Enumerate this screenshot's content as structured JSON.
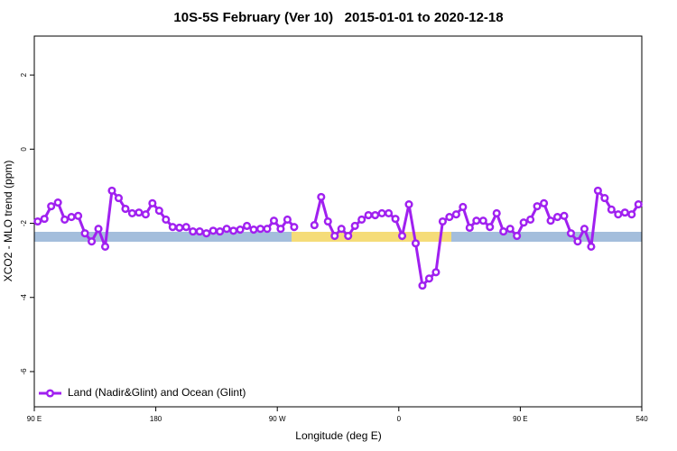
{
  "chart_data": {
    "type": "line",
    "title": "10S-5S February (Ver 10)   2015-01-01 to 2020-12-18",
    "xlabel": "Longitude (deg E)",
    "ylabel": "XCO2 - MLO trend (ppm)",
    "xlim": [
      90,
      540
    ],
    "xticks": [
      {
        "value": 90,
        "label": "90 E"
      },
      180,
      {
        "value": 270,
        "label": "90 W"
      },
      {
        "value": 360,
        "label": "0"
      },
      {
        "value": 450,
        "label": "90 E"
      },
      540
    ],
    "ylim": [
      -6.95,
      3.05
    ],
    "yticks": [
      2,
      0,
      -2,
      -4,
      -6
    ],
    "legend": "bottom-left",
    "x": [
      92.5,
      97.5,
      102.5,
      107.5,
      112.5,
      117.5,
      122.5,
      127.5,
      132.5,
      137.5,
      142.5,
      147.5,
      152.5,
      157.5,
      162.5,
      167.5,
      172.5,
      177.5,
      182.5,
      187.5,
      192.5,
      197.5,
      202.5,
      207.5,
      212.5,
      217.5,
      222.5,
      227.5,
      232.5,
      237.5,
      242.5,
      247.5,
      252.5,
      257.5,
      262.5,
      267.5,
      272.5,
      277.5,
      282.5,
      287.5,
      292.5,
      297.5,
      302.5,
      307.5,
      312.5,
      317.5,
      322.5,
      327.5,
      332.5,
      337.5,
      342.5,
      347.5,
      352.5,
      357.5,
      362.5,
      367.5,
      372.5,
      377.5,
      382.5,
      387.5,
      392.5,
      397.5,
      402.5,
      407.5,
      412.5,
      417.5,
      422.5,
      427.5,
      432.5,
      437.5,
      442.5,
      447.5,
      452.5,
      457.5,
      462.5,
      467.5,
      472.5,
      477.5,
      482.5,
      487.5,
      492.5,
      497.5,
      502.5,
      507.5,
      512.5,
      517.5,
      522.5,
      527.5,
      532.5,
      537.5
    ],
    "series": [
      {
        "name": "Land (Nadir&Glint) and Ocean (Glint)",
        "color": "#a020f0",
        "values": [
          -1.95,
          -1.88,
          -1.54,
          -1.44,
          -1.9,
          -1.83,
          -1.8,
          -2.27,
          -2.49,
          -2.15,
          -2.63,
          -1.12,
          -1.32,
          -1.61,
          -1.73,
          -1.71,
          -1.76,
          -1.46,
          -1.66,
          -1.9,
          -2.1,
          -2.12,
          -2.1,
          -2.22,
          -2.22,
          -2.27,
          -2.2,
          -2.22,
          -2.15,
          -2.2,
          -2.17,
          -2.07,
          -2.17,
          -2.15,
          -2.15,
          -1.93,
          -2.15,
          -1.9,
          -2.1,
          null,
          null,
          -2.05,
          -1.29,
          -1.95,
          -2.34,
          -2.15,
          -2.34,
          -2.07,
          -1.9,
          -1.78,
          -1.78,
          -1.73,
          -1.73,
          -1.88,
          -2.34,
          -1.49,
          -2.54,
          -3.68,
          -3.49,
          -3.32,
          -1.95,
          -1.83,
          -1.76,
          -1.56,
          -2.12,
          -1.93,
          -1.93,
          -2.1,
          -1.73,
          -2.22,
          -2.15,
          -2.34,
          -1.98,
          -1.9,
          -1.54,
          -1.46,
          -1.93,
          -1.83,
          -1.8,
          -2.27,
          -2.49,
          -2.15,
          -2.63,
          -1.12,
          -1.32,
          -1.63,
          -1.76,
          -1.71,
          -1.76,
          -1.49
        ]
      }
    ]
  }
}
